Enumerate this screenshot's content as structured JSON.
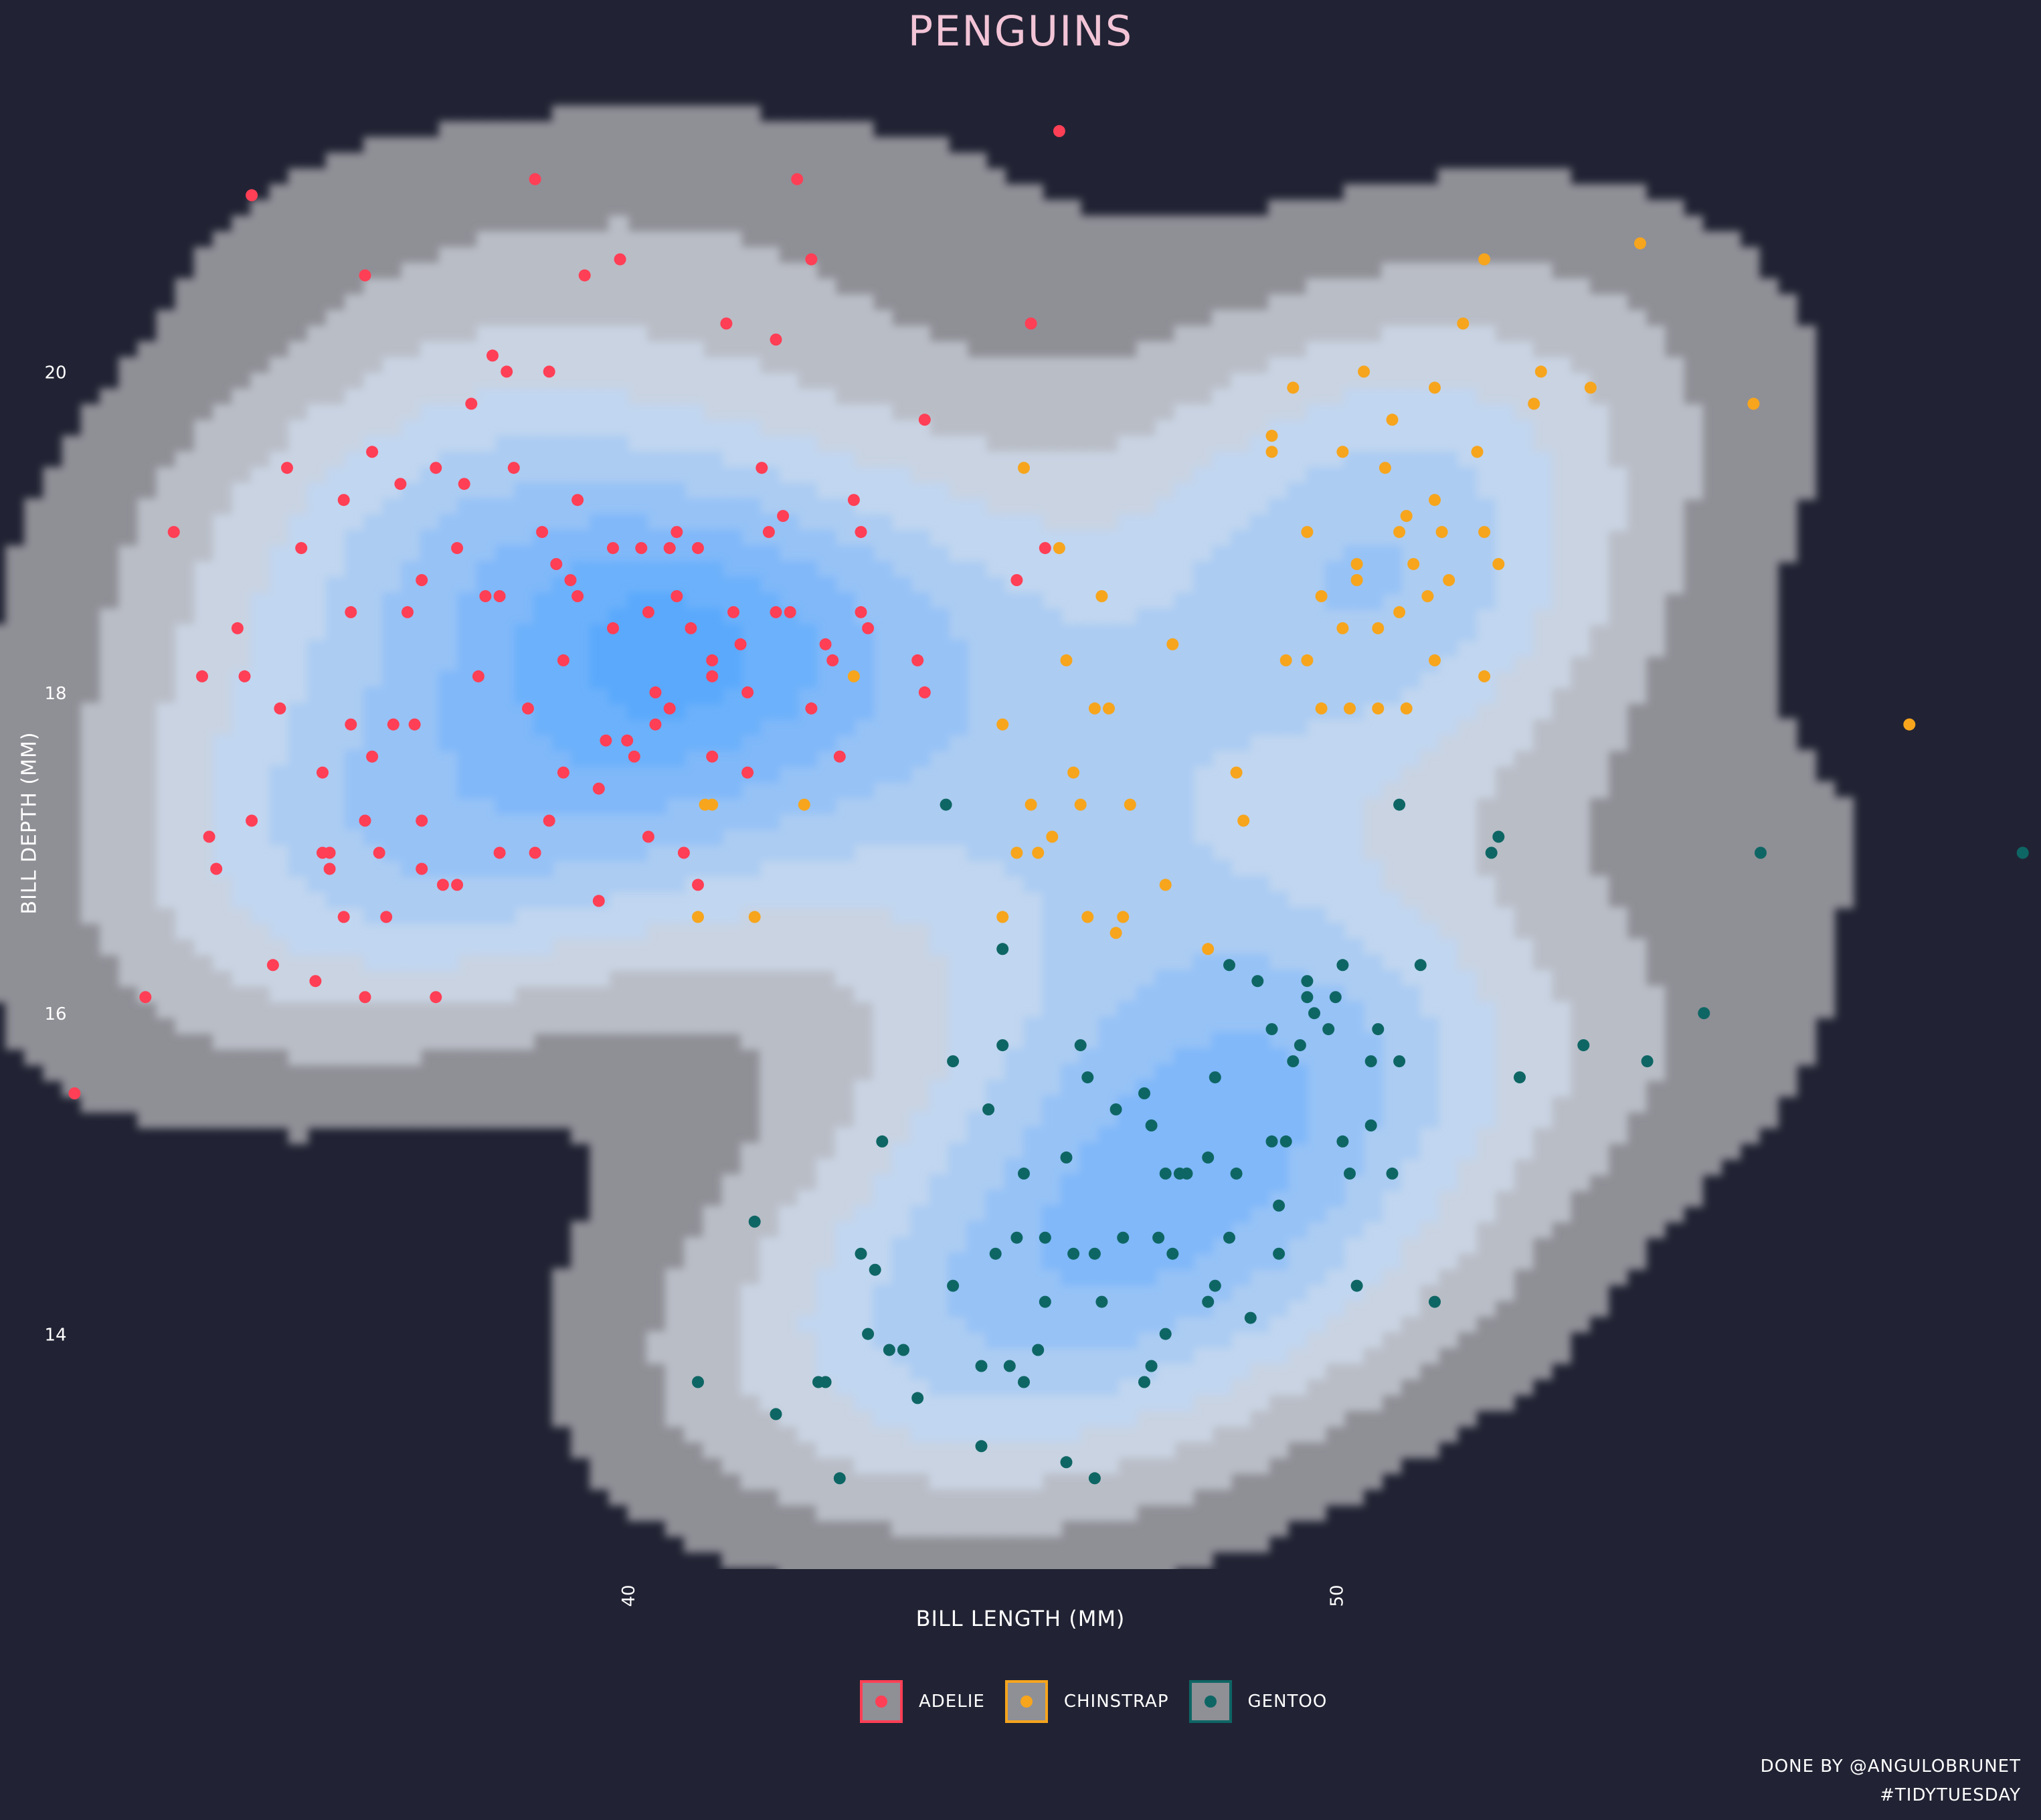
{
  "chart_data": {
    "type": "scatter",
    "title": "PENGUINS",
    "xlabel": "BILL LENGTH (MM)",
    "ylabel": "BILL DEPTH (MM)",
    "xlim": [
      31.0,
      60.0
    ],
    "ylim": [
      12.2,
      21.9
    ],
    "x_ticks": [
      40,
      50
    ],
    "y_ticks": [
      14,
      16,
      18,
      20
    ],
    "grid": false,
    "legend_position": "bottom",
    "density_contours": true,
    "density_colors": [
      "#8f8f96",
      "#b9bdc6",
      "#c9d3e2",
      "#c1d6f0",
      "#acccf2",
      "#96c2f6",
      "#80b8f9",
      "#6cb1fb",
      "#5aa9fc"
    ],
    "series": [
      {
        "name": "ADELIE",
        "color": "#ff3f55",
        "points": [
          [
            32.1,
            15.5
          ],
          [
            33.1,
            16.1
          ],
          [
            33.5,
            19.0
          ],
          [
            34.0,
            17.1
          ],
          [
            34.4,
            18.4
          ],
          [
            34.5,
            18.1
          ],
          [
            34.6,
            21.1
          ],
          [
            34.6,
            17.2
          ],
          [
            35.0,
            17.9
          ],
          [
            35.1,
            19.4
          ],
          [
            35.3,
            18.9
          ],
          [
            35.5,
            16.2
          ],
          [
            35.6,
            17.5
          ],
          [
            35.7,
            17.0
          ],
          [
            35.7,
            16.9
          ],
          [
            35.9,
            19.2
          ],
          [
            35.9,
            16.6
          ],
          [
            36.0,
            18.5
          ],
          [
            36.0,
            17.8
          ],
          [
            36.2,
            17.2
          ],
          [
            36.2,
            16.1
          ],
          [
            36.3,
            19.5
          ],
          [
            36.4,
            17.0
          ],
          [
            36.5,
            16.6
          ],
          [
            36.6,
            17.8
          ],
          [
            36.7,
            19.3
          ],
          [
            36.8,
            18.5
          ],
          [
            37.0,
            16.9
          ],
          [
            37.2,
            19.4
          ],
          [
            37.3,
            16.8
          ],
          [
            37.5,
            18.9
          ],
          [
            37.6,
            19.3
          ],
          [
            37.7,
            19.8
          ],
          [
            37.8,
            18.1
          ],
          [
            37.9,
            18.6
          ],
          [
            38.1,
            18.6
          ],
          [
            38.1,
            17.0
          ],
          [
            38.2,
            20.0
          ],
          [
            38.6,
            21.2
          ],
          [
            38.7,
            19.0
          ],
          [
            38.8,
            17.2
          ],
          [
            39.0,
            17.5
          ],
          [
            39.1,
            18.7
          ],
          [
            39.2,
            18.6
          ],
          [
            39.3,
            20.6
          ],
          [
            39.5,
            17.4
          ],
          [
            39.6,
            17.7
          ],
          [
            39.7,
            18.4
          ],
          [
            40.1,
            18.9
          ],
          [
            40.2,
            17.1
          ],
          [
            40.3,
            18.0
          ],
          [
            40.5,
            18.9
          ],
          [
            40.6,
            19.0
          ],
          [
            40.7,
            17.0
          ],
          [
            40.8,
            18.4
          ],
          [
            40.9,
            16.8
          ],
          [
            41.1,
            17.6
          ],
          [
            41.3,
            20.3
          ],
          [
            41.4,
            18.5
          ],
          [
            41.5,
            18.3
          ],
          [
            41.6,
            18.0
          ],
          [
            42.0,
            20.2
          ],
          [
            42.1,
            19.1
          ],
          [
            42.2,
            18.5
          ],
          [
            42.3,
            21.2
          ],
          [
            42.5,
            20.7
          ],
          [
            42.7,
            18.3
          ],
          [
            43.1,
            19.2
          ],
          [
            43.2,
            18.5
          ],
          [
            44.1,
            19.7
          ],
          [
            44.1,
            18.0
          ],
          [
            45.6,
            20.3
          ],
          [
            45.8,
            18.9
          ],
          [
            46.0,
            21.5
          ],
          [
            33.9,
            18.1
          ],
          [
            34.1,
            16.9
          ],
          [
            34.9,
            16.3
          ],
          [
            35.6,
            17.0
          ],
          [
            36.3,
            17.6
          ],
          [
            36.9,
            17.8
          ],
          [
            37.0,
            17.2
          ],
          [
            37.5,
            16.8
          ],
          [
            38.0,
            20.1
          ],
          [
            38.3,
            19.4
          ],
          [
            38.5,
            17.9
          ],
          [
            38.9,
            18.8
          ],
          [
            39.0,
            18.2
          ],
          [
            39.5,
            16.7
          ],
          [
            39.7,
            18.9
          ],
          [
            39.9,
            17.7
          ],
          [
            40.2,
            18.5
          ],
          [
            40.3,
            17.8
          ],
          [
            40.5,
            17.9
          ],
          [
            40.9,
            18.9
          ],
          [
            41.1,
            18.2
          ],
          [
            41.6,
            17.5
          ],
          [
            41.8,
            19.4
          ],
          [
            41.9,
            19.0
          ],
          [
            42.0,
            18.5
          ],
          [
            42.5,
            17.9
          ],
          [
            42.9,
            17.6
          ],
          [
            43.2,
            19.0
          ],
          [
            43.3,
            18.4
          ],
          [
            44.0,
            18.2
          ],
          [
            36.2,
            20.6
          ],
          [
            37.0,
            18.7
          ],
          [
            38.8,
            20.0
          ],
          [
            39.2,
            19.2
          ],
          [
            39.8,
            20.7
          ],
          [
            40.6,
            18.6
          ],
          [
            41.1,
            18.1
          ],
          [
            42.8,
            18.2
          ],
          [
            45.4,
            18.7
          ],
          [
            37.2,
            16.1
          ],
          [
            38.6,
            17.0
          ],
          [
            40.0,
            17.6
          ]
        ]
      },
      {
        "name": "CHINSTRAP",
        "color": "#f6a51d",
        "points": [
          [
            40.9,
            16.6
          ],
          [
            41.0,
            17.3
          ],
          [
            41.1,
            17.3
          ],
          [
            41.7,
            16.6
          ],
          [
            42.4,
            17.3
          ],
          [
            43.1,
            18.1
          ],
          [
            45.2,
            17.8
          ],
          [
            45.2,
            16.6
          ],
          [
            45.4,
            17.0
          ],
          [
            45.5,
            19.4
          ],
          [
            45.6,
            17.3
          ],
          [
            45.7,
            17.0
          ],
          [
            45.9,
            17.1
          ],
          [
            46.0,
            18.9
          ],
          [
            46.1,
            18.2
          ],
          [
            46.2,
            17.5
          ],
          [
            46.4,
            16.6
          ],
          [
            46.5,
            17.9
          ],
          [
            46.6,
            18.6
          ],
          [
            46.7,
            17.9
          ],
          [
            46.8,
            16.5
          ],
          [
            46.9,
            16.6
          ],
          [
            47.0,
            17.3
          ],
          [
            47.5,
            16.8
          ],
          [
            47.6,
            18.3
          ],
          [
            48.1,
            16.4
          ],
          [
            48.5,
            17.5
          ],
          [
            49.0,
            19.5
          ],
          [
            49.0,
            19.6
          ],
          [
            49.2,
            18.2
          ],
          [
            49.3,
            19.9
          ],
          [
            49.5,
            19.0
          ],
          [
            49.5,
            18.2
          ],
          [
            49.7,
            18.6
          ],
          [
            50.0,
            19.5
          ],
          [
            50.1,
            17.9
          ],
          [
            50.2,
            18.8
          ],
          [
            50.3,
            20.0
          ],
          [
            50.5,
            18.4
          ],
          [
            50.5,
            17.9
          ],
          [
            50.6,
            19.4
          ],
          [
            50.7,
            19.7
          ],
          [
            50.8,
            19.0
          ],
          [
            50.8,
            18.5
          ],
          [
            50.9,
            17.9
          ],
          [
            50.9,
            19.1
          ],
          [
            51.0,
            18.8
          ],
          [
            51.3,
            19.9
          ],
          [
            51.3,
            18.2
          ],
          [
            51.3,
            19.2
          ],
          [
            51.4,
            19.0
          ],
          [
            51.5,
            18.7
          ],
          [
            51.9,
            19.5
          ],
          [
            52.0,
            18.1
          ],
          [
            52.0,
            19.0
          ],
          [
            52.0,
            20.7
          ],
          [
            52.2,
            18.8
          ],
          [
            52.7,
            19.8
          ],
          [
            52.8,
            20.0
          ],
          [
            53.5,
            19.9
          ],
          [
            54.2,
            20.8
          ],
          [
            55.8,
            19.8
          ],
          [
            58.0,
            17.8
          ],
          [
            46.3,
            17.3
          ],
          [
            48.6,
            17.2
          ],
          [
            50.2,
            18.7
          ],
          [
            51.7,
            20.3
          ],
          [
            51.2,
            18.6
          ],
          [
            50.0,
            18.4
          ],
          [
            49.7,
            17.9
          ]
        ]
      },
      {
        "name": "GENTOO",
        "color": "#0e6664",
        "points": [
          [
            40.9,
            13.7
          ],
          [
            41.7,
            14.7
          ],
          [
            42.0,
            13.5
          ],
          [
            42.6,
            13.7
          ],
          [
            42.7,
            13.7
          ],
          [
            42.9,
            13.1
          ],
          [
            43.2,
            14.5
          ],
          [
            43.3,
            14.0
          ],
          [
            43.4,
            14.4
          ],
          [
            43.5,
            15.2
          ],
          [
            43.6,
            13.9
          ],
          [
            43.8,
            13.9
          ],
          [
            44.0,
            13.6
          ],
          [
            44.4,
            17.3
          ],
          [
            44.5,
            15.7
          ],
          [
            44.5,
            14.3
          ],
          [
            44.9,
            13.3
          ],
          [
            45.0,
            15.4
          ],
          [
            45.1,
            14.5
          ],
          [
            45.2,
            16.4
          ],
          [
            45.2,
            15.8
          ],
          [
            45.3,
            13.8
          ],
          [
            45.4,
            14.6
          ],
          [
            45.5,
            13.7
          ],
          [
            45.5,
            15.0
          ],
          [
            45.7,
            13.9
          ],
          [
            45.8,
            14.6
          ],
          [
            46.1,
            13.2
          ],
          [
            46.1,
            15.1
          ],
          [
            46.2,
            14.5
          ],
          [
            46.3,
            15.8
          ],
          [
            46.4,
            15.6
          ],
          [
            46.5,
            14.5
          ],
          [
            46.6,
            14.2
          ],
          [
            46.8,
            15.4
          ],
          [
            47.2,
            13.7
          ],
          [
            47.3,
            15.3
          ],
          [
            47.4,
            14.6
          ],
          [
            47.5,
            14.0
          ],
          [
            47.6,
            14.5
          ],
          [
            47.7,
            15.0
          ],
          [
            47.8,
            15.0
          ],
          [
            48.1,
            15.1
          ],
          [
            48.2,
            14.3
          ],
          [
            48.4,
            14.6
          ],
          [
            48.4,
            16.3
          ],
          [
            48.5,
            15.0
          ],
          [
            48.7,
            14.1
          ],
          [
            48.8,
            16.2
          ],
          [
            49.0,
            15.2
          ],
          [
            49.1,
            14.8
          ],
          [
            49.1,
            14.5
          ],
          [
            49.2,
            15.2
          ],
          [
            49.3,
            15.7
          ],
          [
            49.4,
            15.8
          ],
          [
            49.5,
            16.1
          ],
          [
            49.6,
            16.0
          ],
          [
            49.8,
            15.9
          ],
          [
            49.9,
            16.1
          ],
          [
            50.0,
            15.2
          ],
          [
            50.1,
            15.0
          ],
          [
            50.2,
            14.3
          ],
          [
            50.4,
            15.3
          ],
          [
            50.4,
            15.7
          ],
          [
            50.5,
            15.9
          ],
          [
            50.7,
            15.0
          ],
          [
            50.8,
            17.3
          ],
          [
            50.8,
            15.7
          ],
          [
            51.1,
            16.3
          ],
          [
            51.3,
            14.2
          ],
          [
            52.1,
            17.0
          ],
          [
            52.2,
            17.1
          ],
          [
            52.5,
            15.6
          ],
          [
            53.4,
            15.8
          ],
          [
            54.3,
            15.7
          ],
          [
            55.1,
            16.0
          ],
          [
            55.9,
            17.0
          ],
          [
            59.6,
            17.0
          ],
          [
            47.3,
            13.8
          ],
          [
            47.5,
            15.0
          ],
          [
            45.8,
            14.2
          ],
          [
            46.9,
            14.6
          ],
          [
            48.2,
            15.6
          ],
          [
            49.0,
            15.9
          ],
          [
            46.5,
            13.1
          ],
          [
            44.9,
            13.8
          ],
          [
            47.2,
            15.5
          ],
          [
            49.5,
            16.2
          ],
          [
            48.1,
            14.2
          ],
          [
            50.0,
            16.3
          ]
        ]
      }
    ]
  },
  "caption": {
    "line1": "DONE BY @ANGULOBRUNET",
    "line2": "#TIDYTUESDAY"
  }
}
